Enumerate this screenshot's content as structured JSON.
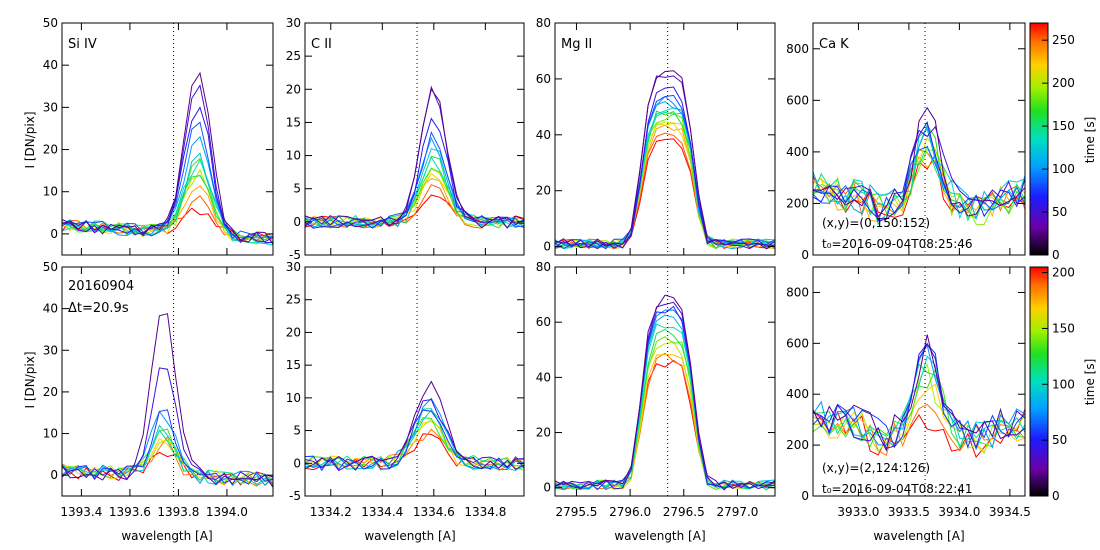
{
  "figure": {
    "shared_ylabel": "I [DN/pix]",
    "shared_xlabel": "wavelength [A]",
    "colorbar_label": "time [s]"
  },
  "colorbars": [
    {
      "row": 0,
      "ticks": [
        0,
        50,
        100,
        150,
        200,
        250
      ],
      "range": [
        0,
        270
      ]
    },
    {
      "row": 1,
      "ticks": [
        0,
        50,
        100,
        150,
        200
      ],
      "range": [
        0,
        205
      ]
    }
  ],
  "annotations": {
    "date": "20160904",
    "cadence": "Δt=20.9s",
    "row0_position": "(x,y)=(0,150:152)",
    "row0_time": "t₀=2016-09-04T08:25:46",
    "row1_position": "(x,y)=(2,124:126)",
    "row1_time": "t₀=2016-09-04T08:22:41"
  },
  "chart_data": [
    {
      "type": "line",
      "row": 0,
      "col": 0,
      "title": "Si IV",
      "xlabel": "wavelength [A]",
      "ylabel": "I [DN/pix]",
      "xlim": [
        1393.32,
        1394.19
      ],
      "ylim": [
        -5,
        50
      ],
      "xticks": [
        1393.4,
        1393.6,
        1393.8,
        1394.0
      ],
      "xticklabels": [
        "1393.4",
        "1393.6",
        "1393.8",
        "1394.0"
      ],
      "yticks": [
        0,
        10,
        20,
        30,
        40,
        50
      ],
      "refline": 1393.78,
      "profile": {
        "kind": "peak",
        "center": 1393.88,
        "width": 0.075,
        "base": 0,
        "tail": -1.5,
        "amps": [
          6,
          9,
          11,
          13,
          14,
          17,
          15,
          17,
          18,
          22,
          26,
          31,
          35,
          38
        ],
        "noise": 1.5
      }
    },
    {
      "type": "line",
      "row": 0,
      "col": 1,
      "title": "C II",
      "xlabel": "wavelength [A]",
      "ylabel": "",
      "xlim": [
        1334.1,
        1334.95
      ],
      "ylim": [
        -5,
        30
      ],
      "xticks": [
        1334.2,
        1334.4,
        1334.6,
        1334.8
      ],
      "xticklabels": [
        "1334.2",
        "1334.4",
        "1334.6",
        "1334.8"
      ],
      "yticks": [
        -5,
        0,
        5,
        10,
        15,
        20,
        25,
        30
      ],
      "refline": 1334.535,
      "profile": {
        "kind": "peak",
        "center": 1334.6,
        "width": 0.07,
        "base": 0,
        "tail": 0,
        "amps": [
          5,
          6,
          7,
          8,
          8,
          9,
          10,
          9,
          11,
          12,
          13,
          16,
          20,
          20
        ],
        "noise": 1.5
      }
    },
    {
      "type": "line",
      "row": 0,
      "col": 2,
      "title": "Mg II",
      "xlabel": "wavelength [A]",
      "ylabel": "",
      "xlim": [
        2795.3,
        2797.35
      ],
      "ylim": [
        -3,
        80
      ],
      "xticks": [
        2795.5,
        2796.0,
        2796.5,
        2797.0
      ],
      "xticklabels": [
        "2795.5",
        "2796.0",
        "2796.5",
        "2797.0"
      ],
      "yticks": [
        0,
        20,
        40,
        60,
        80
      ],
      "refline": 2796.35,
      "profile": {
        "kind": "flat",
        "center": 2796.35,
        "width": 0.27,
        "base": 1,
        "tail": 0,
        "amps": [
          38,
          40,
          42,
          43,
          45,
          46,
          47,
          48,
          49,
          50,
          51,
          52,
          55,
          60,
          62
        ],
        "noise": 1.2
      }
    },
    {
      "type": "line",
      "row": 0,
      "col": 3,
      "title": "Ca K",
      "xlabel": "wavelength [A]",
      "ylabel": "",
      "xlim": [
        3932.55,
        3934.65
      ],
      "ylim": [
        0,
        900
      ],
      "xticks": [
        3933.0,
        3933.5,
        3934.0,
        3934.5
      ],
      "xticklabels": [
        "3933.0",
        "3933.5",
        "3934.0",
        "3934.5"
      ],
      "yticks": [
        0,
        200,
        400,
        600,
        800
      ],
      "refline": 3933.66,
      "profile": {
        "kind": "calcium",
        "center": 3933.68,
        "width": 0.18,
        "base": 200,
        "tail": 0,
        "amps": [
          330,
          350,
          370,
          380,
          390,
          400,
          405,
          410,
          415,
          420,
          440,
          460,
          470
        ],
        "noise": 4
      }
    },
    {
      "type": "line",
      "row": 1,
      "col": 0,
      "title": "",
      "xlabel": "wavelength [A]",
      "ylabel": "I [DN/pix]",
      "xlim": [
        1393.32,
        1394.19
      ],
      "ylim": [
        -5,
        50
      ],
      "xticks": [
        1393.4,
        1393.6,
        1393.8,
        1394.0
      ],
      "xticklabels": [
        "1393.4",
        "1393.6",
        "1393.8",
        "1394.0"
      ],
      "yticks": [
        0,
        10,
        20,
        30,
        40,
        50
      ],
      "refline": 1393.78,
      "profile": {
        "kind": "peak",
        "center": 1393.74,
        "width": 0.07,
        "base": 0,
        "tail": -1,
        "amps": [
          6,
          8,
          9,
          9,
          10,
          10,
          11,
          15,
          15,
          26,
          40
        ],
        "noise": 1.8
      }
    },
    {
      "type": "line",
      "row": 1,
      "col": 1,
      "title": "",
      "xlabel": "wavelength [A]",
      "ylabel": "",
      "xlim": [
        1334.1,
        1334.95
      ],
      "ylim": [
        -5,
        30
      ],
      "xticks": [
        1334.2,
        1334.4,
        1334.6,
        1334.8
      ],
      "xticklabels": [
        "1334.2",
        "1334.4",
        "1334.6",
        "1334.8"
      ],
      "yticks": [
        -5,
        0,
        5,
        10,
        15,
        20,
        25,
        30
      ],
      "refline": 1334.535,
      "profile": {
        "kind": "peak",
        "center": 1334.58,
        "width": 0.08,
        "base": 0,
        "tail": 0,
        "amps": [
          4,
          5,
          6,
          7,
          7,
          8,
          8,
          9,
          9,
          10,
          12
        ],
        "noise": 1.8
      }
    },
    {
      "type": "line",
      "row": 1,
      "col": 2,
      "title": "",
      "xlabel": "wavelength [A]",
      "ylabel": "",
      "xlim": [
        2795.3,
        2797.35
      ],
      "ylim": [
        -3,
        80
      ],
      "xticks": [
        2795.5,
        2796.0,
        2796.5,
        2797.0
      ],
      "xticklabels": [
        "2795.5",
        "2796.0",
        "2796.5",
        "2797.0"
      ],
      "yticks": [
        0,
        20,
        40,
        60,
        80
      ],
      "refline": 2796.35,
      "profile": {
        "kind": "flat",
        "center": 2796.35,
        "width": 0.27,
        "base": 1,
        "tail": 0,
        "amps": [
          44,
          46,
          48,
          51,
          53,
          55,
          58,
          60,
          62,
          63,
          65,
          67
        ],
        "noise": 1.2
      }
    },
    {
      "type": "line",
      "row": 1,
      "col": 3,
      "title": "",
      "xlabel": "wavelength [A]",
      "ylabel": "",
      "xlim": [
        3932.55,
        3934.65
      ],
      "ylim": [
        0,
        900
      ],
      "xticks": [
        3933.0,
        3933.5,
        3934.0,
        3934.5
      ],
      "xticklabels": [
        "3933.0",
        "3933.5",
        "3934.0",
        "3934.5"
      ],
      "yticks": [
        0,
        200,
        400,
        600,
        800
      ],
      "refline": 3933.66,
      "profile": {
        "kind": "calcium",
        "center": 3933.68,
        "width": 0.18,
        "base": 250,
        "tail": 0,
        "amps": [
          260,
          320,
          400,
          430,
          450,
          470,
          480,
          500,
          510,
          530,
          540
        ],
        "noise": 4
      }
    }
  ]
}
